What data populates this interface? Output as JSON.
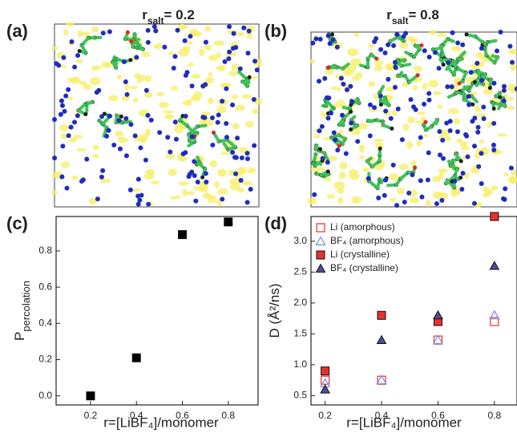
{
  "panels": [
    {
      "label": "(a)",
      "title": {
        "main": "r",
        "sub": "salt",
        "rest": "= 0.2"
      }
    },
    {
      "label": "(b)",
      "title": {
        "main": "r",
        "sub": "salt",
        "rest": "= 0.8"
      }
    },
    {
      "label": "(c)"
    },
    {
      "label": "(d)"
    }
  ],
  "chart_data": [
    {
      "type": "scatter",
      "x_label": "r=[LiBF₄]/monomer",
      "y_label": {
        "main": "P",
        "sub": "percolation"
      },
      "x": [
        0.2,
        0.4,
        0.6,
        0.8
      ],
      "series": [
        {
          "color": "#000000",
          "marker": "square",
          "filled": true,
          "values": [
            0.0,
            0.21,
            0.89,
            0.96
          ]
        }
      ],
      "xlim": [
        0.05,
        0.93
      ],
      "ylim": [
        -0.05,
        0.99
      ],
      "xticks": [
        0.2,
        0.4,
        0.6,
        0.8
      ],
      "yticks": [
        {
          "value": 0,
          "label": "0.0"
        },
        0.2,
        0.4,
        0.6,
        0.8
      ]
    },
    {
      "type": "scatter",
      "x_label": "r=[LiBF₄]/monomer",
      "y_label": {
        "main": "D (Å²/ns)"
      },
      "x": [
        0.2,
        0.4,
        0.6,
        0.8
      ],
      "legend": "upper left",
      "series": [
        {
          "name": "Li (amorphous)",
          "color": "#e8312d",
          "marker": "square",
          "filled": false,
          "values": [
            0.75,
            0.75,
            1.4,
            1.7
          ]
        },
        {
          "name": "BF₄ (amorphous)",
          "color": "#7f86ee",
          "marker": "triangle",
          "filled": false,
          "values": [
            0.7,
            0.75,
            1.4,
            1.8
          ]
        },
        {
          "name": "Li (crystalline)",
          "color": "#e8312d",
          "marker": "square",
          "filled": true,
          "values": [
            0.9,
            1.8,
            1.7,
            3.4
          ]
        },
        {
          "name": "BF₄ (crystalline)",
          "color": "#4a4f9a",
          "marker": "triangle",
          "filled": true,
          "values": [
            0.6,
            1.4,
            1.8,
            2.6
          ]
        }
      ],
      "xlim": [
        0.15,
        0.88
      ],
      "ylim": [
        0.35,
        3.4
      ],
      "xticks": [
        0.2,
        0.4,
        0.6,
        0.8
      ],
      "yticks": [
        0.5,
        {
          "value": 1,
          "label": "1.0"
        },
        1.5,
        {
          "value": 2,
          "label": "2.0"
        },
        2.5,
        {
          "value": 3,
          "label": "3.0"
        }
      ]
    }
  ]
}
